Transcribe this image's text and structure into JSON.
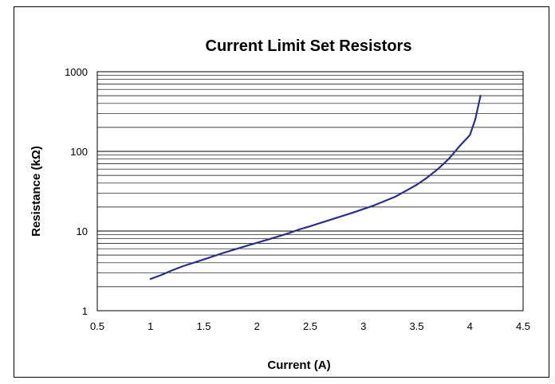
{
  "chart_data": {
    "type": "line",
    "title": "Current Limit Set Resistors",
    "xlabel": "Current (A)",
    "ylabel": "Resistance (kΩ)",
    "xlim": [
      0.5,
      4.5
    ],
    "ylim": [
      1,
      1000
    ],
    "yscale": "log",
    "grid": "horizontal major and minor",
    "legend": "none",
    "x_ticks": [
      "0.5",
      "1",
      "1.5",
      "2",
      "2.5",
      "3",
      "3.5",
      "4",
      "4.5"
    ],
    "y_ticks": [
      "1",
      "10",
      "100",
      "1000"
    ],
    "line_color": "#2b2f8a",
    "series": [
      {
        "x": [
          1.0,
          1.1,
          1.2,
          1.3,
          1.5,
          1.7,
          1.9,
          2.1,
          2.3,
          2.4,
          2.5,
          2.7,
          2.9,
          3.1,
          3.3,
          3.5,
          3.6,
          3.7,
          3.8,
          3.9,
          4.0,
          4.05,
          4.1
        ],
        "y": [
          2.5,
          2.8,
          3.2,
          3.6,
          4.4,
          5.4,
          6.5,
          7.8,
          9.4,
          10.5,
          11.5,
          14.0,
          17.0,
          21.0,
          27.0,
          38.0,
          47.0,
          60.0,
          80.0,
          115.0,
          160.0,
          250.0,
          500.0
        ]
      }
    ]
  }
}
